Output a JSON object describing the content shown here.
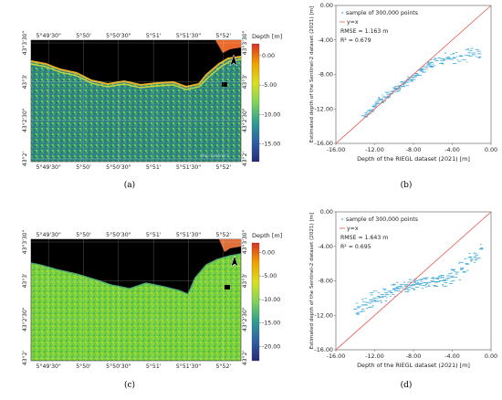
{
  "panels": [
    {
      "id": "a",
      "label": "(a)",
      "kind": "map",
      "lon_ticks": [
        "5°49'30\"",
        "5°50'",
        "5°50'30\"",
        "5°51'",
        "5°51'30\"",
        "5°52'"
      ],
      "lat_ticks": [
        "43°3'30\"",
        "43°3'",
        "43°2'30\"",
        "43°2'"
      ],
      "colorbar": {
        "title": "Depth [m]",
        "ticks": [
          "0.00",
          "-5.00",
          "-10.00",
          "-15.00"
        ],
        "tick_values": [
          0,
          -5,
          -10,
          -15
        ],
        "range": [
          2,
          -18
        ],
        "colors": [
          "#d73027",
          "#f0a100",
          "#d9e021",
          "#7fd35a",
          "#2e9d8f",
          "#2f5fa5",
          "#262a78"
        ]
      },
      "attribution": "Map: Sentinel-2",
      "north_arrow": "north-arrow-icon"
    },
    {
      "id": "b",
      "label": "(b)",
      "kind": "scatter",
      "chart_data": {
        "type": "scatter",
        "title": "",
        "xlabel": "Depth of the RIEGL dataset (2021) [m]",
        "ylabel": "Estimated depth of the Sentinel-2 dataset (2021) [m]",
        "xlim": [
          -16,
          0
        ],
        "ylim": [
          -16,
          0
        ],
        "x_ticks": [
          "-16.00",
          "-12.00",
          "-8.00",
          "-4.00",
          "0.00"
        ],
        "y_ticks": [
          "0.00",
          "-4.00",
          "-8.00",
          "-12.00",
          "-16.00"
        ],
        "grid": false,
        "legend": [
          "sample of 300,000 points",
          "y=x"
        ],
        "legend_position": "top-left",
        "annotations": [
          "RMSE = 1.163 m",
          "R² = 0.679"
        ],
        "series": [
          {
            "name": "sample of 300,000 points",
            "color": "#3fa9d9",
            "x": [
              -13.2,
              -12.8,
              -12.4,
              -12.1,
              -11.7,
              -11.3,
              -11.0,
              -10.6,
              -10.2,
              -9.9,
              -9.5,
              -9.1,
              -8.8,
              -8.4,
              -8.0,
              -7.7,
              -7.3,
              -6.9,
              -6.5,
              -6.1,
              -5.6,
              -5.0,
              -4.4,
              -3.8,
              -3.1,
              -2.4,
              -1.8,
              -1.2
            ],
            "y": [
              -12.8,
              -12.5,
              -12.1,
              -11.7,
              -11.2,
              -10.9,
              -10.6,
              -10.3,
              -10.0,
              -9.7,
              -9.4,
              -9.1,
              -8.8,
              -8.5,
              -8.3,
              -7.9,
              -7.5,
              -7.1,
              -6.9,
              -6.6,
              -6.4,
              -6.2,
              -6.0,
              -6.1,
              -5.9,
              -5.8,
              -5.7,
              -5.6
            ],
            "spread": [
              0.5,
              0.6,
              0.8,
              0.9,
              1.0,
              1.0,
              1.1,
              1.0,
              1.1,
              1.0,
              0.9,
              1.0,
              0.9,
              0.8,
              0.9,
              0.8,
              0.9,
              0.8,
              0.9,
              1.0,
              1.2,
              1.3,
              1.4,
              1.5,
              1.6,
              1.6,
              1.5,
              1.2
            ]
          },
          {
            "name": "y=x",
            "color": "#e4574c",
            "x": [
              -16,
              0
            ],
            "y": [
              -16,
              0
            ]
          }
        ]
      }
    },
    {
      "id": "c",
      "label": "(c)",
      "kind": "map",
      "lon_ticks": [
        "5°49'30\"",
        "5°50'",
        "5°50'30\"",
        "5°51'",
        "5°51'30\"",
        "5°52'"
      ],
      "lat_ticks": [
        "43°3'30\"",
        "43°3'",
        "43°2'30\"",
        "43°2'"
      ],
      "colorbar": {
        "title": "Depth [m]",
        "ticks": [
          "0.00",
          "-5.00",
          "-10.00",
          "-15.00",
          "-20.00"
        ],
        "tick_values": [
          0,
          -5,
          -10,
          -15,
          -20
        ],
        "range": [
          2,
          -23
        ],
        "colors": [
          "#d73027",
          "#f0a100",
          "#d9e021",
          "#7fd35a",
          "#2e9d8f",
          "#2f5fa5",
          "#262a78"
        ]
      },
      "attribution": "",
      "north_arrow": "north-arrow-icon"
    },
    {
      "id": "d",
      "label": "(d)",
      "kind": "scatter",
      "chart_data": {
        "type": "scatter",
        "title": "",
        "xlabel": "Depth of the RIEGL dataset (2021) [m]",
        "ylabel": "Estimated depth of the Sentinel-2 dataset (2021) [m]",
        "xlim": [
          -16,
          0
        ],
        "ylim": [
          -16,
          0
        ],
        "x_ticks": [
          "-16.00",
          "-12.00",
          "-8.00",
          "-4.00",
          "0.00"
        ],
        "y_ticks": [
          "0.00",
          "-4.00",
          "-8.00",
          "-12.00",
          "-16.00"
        ],
        "grid": false,
        "legend": [
          "sample of 300,000 points",
          "y=x"
        ],
        "legend_position": "top-left",
        "annotations": [
          "RMSE = 1.643 m",
          "R² = 0.695"
        ],
        "series": [
          {
            "name": "sample of 300,000 points",
            "color": "#3fa9d9",
            "x": [
              -14.0,
              -13.6,
              -13.2,
              -12.8,
              -12.4,
              -12.0,
              -11.6,
              -11.2,
              -10.8,
              -10.4,
              -10.0,
              -9.6,
              -9.2,
              -8.8,
              -8.4,
              -8.0,
              -7.6,
              -7.2,
              -6.8,
              -6.4,
              -6.0,
              -5.6,
              -5.2,
              -4.8,
              -4.4,
              -4.0,
              -3.5,
              -3.0,
              -2.5,
              -2.0,
              -1.5,
              -1.0
            ],
            "y": [
              -11.3,
              -11.0,
              -10.8,
              -10.5,
              -10.2,
              -10.0,
              -9.8,
              -9.6,
              -9.4,
              -9.2,
              -9.0,
              -8.9,
              -8.8,
              -8.6,
              -8.5,
              -8.4,
              -8.3,
              -8.3,
              -8.2,
              -8.2,
              -8.1,
              -8.1,
              -8.0,
              -7.9,
              -7.7,
              -7.5,
              -7.0,
              -6.5,
              -6.0,
              -5.5,
              -5.0,
              -4.3
            ],
            "spread": [
              1.4,
              1.5,
              1.6,
              1.8,
              1.9,
              2.0,
              1.9,
              1.8,
              1.7,
              1.6,
              1.6,
              1.5,
              1.5,
              1.4,
              1.4,
              1.3,
              1.3,
              1.2,
              1.2,
              1.2,
              1.3,
              1.3,
              1.4,
              1.6,
              1.8,
              2.0,
              2.2,
              2.4,
              2.4,
              2.3,
              2.0,
              1.8
            ]
          },
          {
            "name": "y=x",
            "color": "#e4574c",
            "x": [
              -16,
              0
            ],
            "y": [
              -16,
              0
            ]
          }
        ]
      }
    }
  ]
}
